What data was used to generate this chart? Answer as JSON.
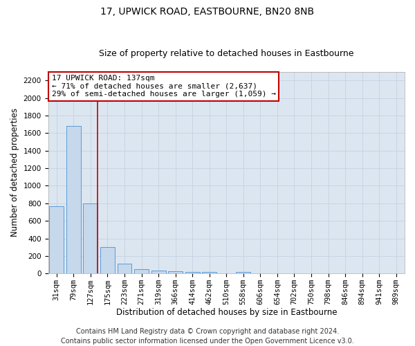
{
  "title": "17, UPWICK ROAD, EASTBOURNE, BN20 8NB",
  "subtitle": "Size of property relative to detached houses in Eastbourne",
  "xlabel": "Distribution of detached houses by size in Eastbourne",
  "ylabel": "Number of detached properties",
  "footer_line1": "Contains HM Land Registry data © Crown copyright and database right 2024.",
  "footer_line2": "Contains public sector information licensed under the Open Government Licence v3.0.",
  "categories": [
    "31sqm",
    "79sqm",
    "127sqm",
    "175sqm",
    "223sqm",
    "271sqm",
    "319sqm",
    "366sqm",
    "414sqm",
    "462sqm",
    "510sqm",
    "558sqm",
    "606sqm",
    "654sqm",
    "702sqm",
    "750sqm",
    "798sqm",
    "846sqm",
    "894sqm",
    "941sqm",
    "989sqm"
  ],
  "values": [
    770,
    1680,
    800,
    300,
    110,
    45,
    35,
    25,
    20,
    20,
    0,
    20,
    0,
    0,
    0,
    0,
    0,
    0,
    0,
    0,
    0
  ],
  "bar_color": "#c5d8ec",
  "bar_edge_color": "#5b9bd5",
  "highlight_index": 2,
  "highlight_line_color": "#c00000",
  "annotation_line1": "17 UPWICK ROAD: 137sqm",
  "annotation_line2": "← 71% of detached houses are smaller (2,637)",
  "annotation_line3": "29% of semi-detached houses are larger (1,059) →",
  "annotation_box_color": "#ffffff",
  "annotation_box_edge_color": "#c00000",
  "ylim": [
    0,
    2300
  ],
  "yticks": [
    0,
    200,
    400,
    600,
    800,
    1000,
    1200,
    1400,
    1600,
    1800,
    2000,
    2200
  ],
  "grid_color": "#c8d4e3",
  "plot_bg_color": "#dce6f1",
  "title_fontsize": 10,
  "subtitle_fontsize": 9,
  "axis_label_fontsize": 8.5,
  "tick_fontsize": 7.5,
  "annotation_fontsize": 8,
  "footer_fontsize": 7
}
